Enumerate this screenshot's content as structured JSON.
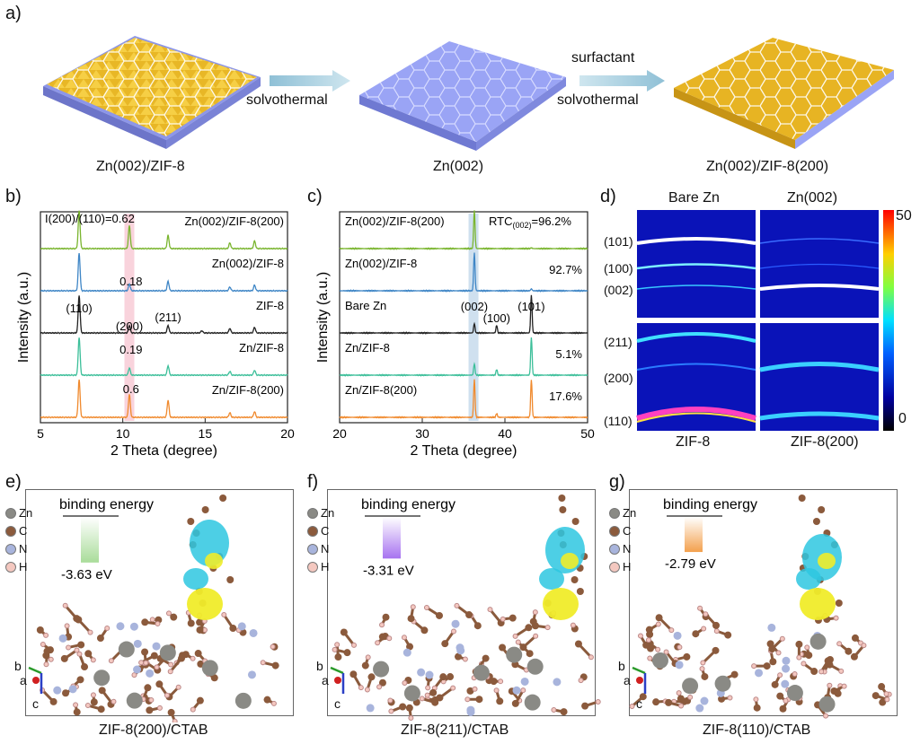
{
  "panel_a": {
    "letter": "a)",
    "center_label": "Zn(002)",
    "left_label": "Zn(002)/ZIF-8",
    "right_label": "Zn(002)/ZIF-8(200)",
    "left_arrow_text": "solvothermal",
    "right_arrow_top": "surfactant",
    "right_arrow_bottom": "solvothermal",
    "colors": {
      "zn_plate": "#9aa4f5",
      "zif": "#f2c230",
      "arrow": "#a9cfe0"
    }
  },
  "panel_b": {
    "letter": "b)",
    "annotation": "I(200)/(110)=0.62",
    "peak_labels": [
      "(110)",
      "(200)",
      "(211)"
    ],
    "ratio_labels": [
      "0.18",
      "0.19",
      "0.6"
    ]
  },
  "panel_c": {
    "letter": "c)",
    "peak_labels": [
      "(002)",
      "(100)",
      "(101)"
    ],
    "rtc_prefix": "RTC",
    "rtc_sub": "(002)",
    "rtc_value": "=96.2%"
  },
  "panel_d": {
    "letter": "d)",
    "col_top_left": "Bare Zn",
    "col_top_right": "Zn(002)",
    "col_bottom_left": "ZIF-8",
    "col_bottom_right": "ZIF-8(200)",
    "row_labels": [
      "(101)",
      "(100)",
      "(002)",
      "(211)",
      "(200)",
      "(110)"
    ],
    "colorbar_max": "50",
    "colorbar_min": "0"
  },
  "dft_panels": [
    {
      "letter": "e)",
      "title": "binding energy",
      "energy": "-3.63 eV",
      "caption": "ZIF-8(200)/CTAB",
      "bar_color": "#a9dc9a"
    },
    {
      "letter": "f)",
      "title": "binding energy",
      "energy": "-3.31 eV",
      "caption": "ZIF-8(211)/CTAB",
      "bar_color": "#a772f0"
    },
    {
      "letter": "g)",
      "title": "binding energy",
      "energy": "-2.79 eV",
      "caption": "ZIF-8(110)/CTAB",
      "bar_color": "#f3a04d"
    }
  ],
  "atom_legend": [
    "Zn",
    "C",
    "N",
    "H"
  ],
  "axis_letters": {
    "b": "b",
    "a": "a",
    "c": "c"
  },
  "chart_data": [
    {
      "type": "line",
      "title": "",
      "xlabel": "2 Theta (degree)",
      "ylabel": "Intensity (a.u.)",
      "xlim": [
        5,
        20
      ],
      "xticks": [
        "5",
        "10",
        "15",
        "20"
      ],
      "highlight_band": [
        10.1,
        10.7
      ],
      "series": [
        {
          "name": "Zn(002)/ZIF-8(200)",
          "color": "#7ab52f",
          "peaks": [
            [
              7.35,
              1.0
            ],
            [
              10.4,
              0.6
            ],
            [
              12.75,
              0.35
            ],
            [
              16.5,
              0.15
            ],
            [
              18.0,
              0.2
            ]
          ]
        },
        {
          "name": "Zn(002)/ZIF-8",
          "color": "#3f86c6",
          "peaks": [
            [
              7.35,
              1.0
            ],
            [
              10.4,
              0.18
            ],
            [
              12.75,
              0.25
            ],
            [
              16.5,
              0.1
            ],
            [
              18.0,
              0.15
            ]
          ]
        },
        {
          "name": "ZIF-8",
          "color": "#222222",
          "peaks": [
            [
              7.35,
              1.0
            ],
            [
              10.4,
              0.2
            ],
            [
              12.75,
              0.2
            ],
            [
              14.8,
              0.06
            ],
            [
              16.5,
              0.12
            ],
            [
              18.0,
              0.15
            ]
          ]
        },
        {
          "name": "Zn/ZIF-8",
          "color": "#3dbf9a",
          "peaks": [
            [
              7.35,
              1.0
            ],
            [
              10.4,
              0.19
            ],
            [
              12.75,
              0.25
            ],
            [
              16.5,
              0.1
            ],
            [
              18.0,
              0.13
            ]
          ]
        },
        {
          "name": "Zn/ZIF-8(200)",
          "color": "#f08a2e",
          "peaks": [
            [
              7.35,
              1.0
            ],
            [
              10.4,
              0.6
            ],
            [
              12.75,
              0.45
            ],
            [
              16.5,
              0.12
            ],
            [
              18.0,
              0.15
            ]
          ]
        }
      ]
    },
    {
      "type": "line",
      "title": "",
      "xlabel": "2 Theta (degree)",
      "ylabel": "Intensity (a.u.)",
      "xlim": [
        20,
        50
      ],
      "xticks": [
        "20",
        "30",
        "40",
        "50"
      ],
      "highlight_band": [
        35.6,
        36.8
      ],
      "series": [
        {
          "name": "Zn(002)/ZIF-8(200)",
          "color": "#7ab52f",
          "annotation": "RTC(002)=96.2%",
          "peaks": [
            [
              36.3,
              1.0
            ],
            [
              43.2,
              0.02
            ]
          ]
        },
        {
          "name": "Zn(002)/ZIF-8",
          "color": "#3f86c6",
          "annotation": "92.7%",
          "peaks": [
            [
              36.3,
              1.0
            ],
            [
              43.2,
              0.05
            ]
          ]
        },
        {
          "name": "Bare Zn",
          "color": "#222222",
          "annotation": "",
          "peaks": [
            [
              36.3,
              0.25
            ],
            [
              39.0,
              0.2
            ],
            [
              43.2,
              1.0
            ]
          ]
        },
        {
          "name": "Zn/ZIF-8",
          "color": "#3dbf9a",
          "annotation": "5.1%",
          "peaks": [
            [
              36.3,
              0.3
            ],
            [
              39.0,
              0.15
            ],
            [
              43.2,
              1.0
            ]
          ]
        },
        {
          "name": "Zn/ZIF-8(200)",
          "color": "#f08a2e",
          "annotation": "17.6%",
          "peaks": [
            [
              36.3,
              1.0
            ],
            [
              39.0,
              0.1
            ],
            [
              43.2,
              1.0
            ]
          ]
        }
      ]
    }
  ]
}
